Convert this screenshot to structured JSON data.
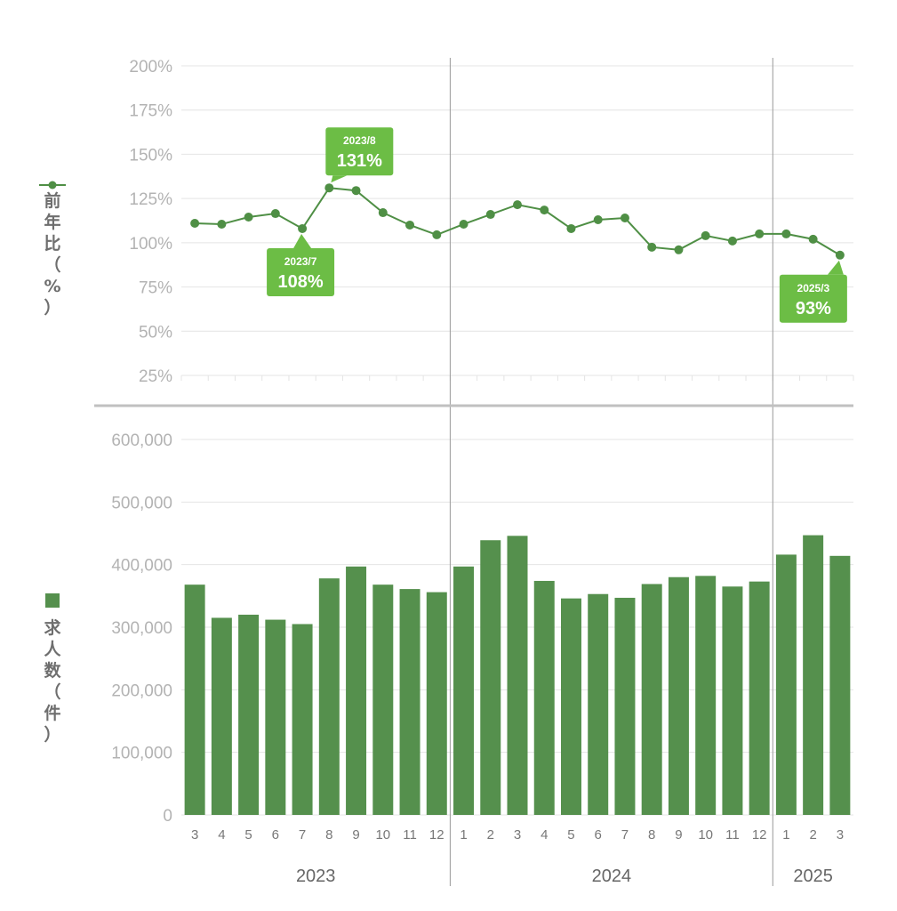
{
  "colors": {
    "bar": "#55904d",
    "line": "#4f8f45",
    "callout": "#6cbd45",
    "grid": "#e4e4e4",
    "divider": "#c0c0c0",
    "separator": "#9a9a9a"
  },
  "legend": {
    "line_label": "前年比（%）",
    "bar_label": "求人数（件）"
  },
  "chart_data": [
    {
      "type": "line",
      "ylabel": "前年比（%）",
      "ylim": [
        25,
        200
      ],
      "yticks": [
        "200%",
        "175%",
        "150%",
        "125%",
        "100%",
        "75%",
        "50%",
        "25%"
      ],
      "categories": [
        "2023/3",
        "2023/4",
        "2023/5",
        "2023/6",
        "2023/7",
        "2023/8",
        "2023/9",
        "2023/10",
        "2023/11",
        "2023/12",
        "2024/1",
        "2024/2",
        "2024/3",
        "2024/4",
        "2024/5",
        "2024/6",
        "2024/7",
        "2024/8",
        "2024/9",
        "2024/10",
        "2024/11",
        "2024/12",
        "2025/1",
        "2025/2",
        "2025/3"
      ],
      "series": [
        {
          "values": [
            111,
            110.5,
            114.5,
            116.5,
            108,
            131,
            129.5,
            117,
            110,
            104.5,
            110.5,
            116,
            121.5,
            118.5,
            108,
            113,
            114,
            97.5,
            96,
            104,
            101,
            105,
            105,
            102,
            93
          ]
        }
      ],
      "callouts": [
        {
          "index": 5,
          "date": "2023/8",
          "value": "131%",
          "position": "above"
        },
        {
          "index": 4,
          "date": "2023/7",
          "value": "108%",
          "position": "below"
        },
        {
          "index": 24,
          "date": "2025/3",
          "value": "93%",
          "position": "below"
        }
      ],
      "grid": true
    },
    {
      "type": "bar",
      "ylabel": "求人数（件）",
      "ylim": [
        0,
        600000
      ],
      "yticks": [
        "600,000",
        "500,000",
        "400,000",
        "300,000",
        "200,000",
        "100,000",
        "0"
      ],
      "categories": [
        "2023/3",
        "2023/4",
        "2023/5",
        "2023/6",
        "2023/7",
        "2023/8",
        "2023/9",
        "2023/10",
        "2023/11",
        "2023/12",
        "2024/1",
        "2024/2",
        "2024/3",
        "2024/4",
        "2024/5",
        "2024/6",
        "2024/7",
        "2024/8",
        "2024/9",
        "2024/10",
        "2024/11",
        "2024/12",
        "2025/1",
        "2025/2",
        "2025/3"
      ],
      "series": [
        {
          "values": [
            368000,
            315000,
            320000,
            312000,
            305000,
            378000,
            397000,
            368000,
            361000,
            356000,
            397000,
            439000,
            446000,
            374000,
            346000,
            353000,
            347000,
            369000,
            380000,
            382000,
            365000,
            373000,
            416000,
            447000,
            414000
          ]
        }
      ],
      "grid": true
    }
  ],
  "x_axis": {
    "months": [
      "3",
      "4",
      "5",
      "6",
      "7",
      "8",
      "9",
      "10",
      "11",
      "12",
      "1",
      "2",
      "3",
      "4",
      "5",
      "6",
      "7",
      "8",
      "9",
      "10",
      "11",
      "12",
      "1",
      "2",
      "3"
    ],
    "years": [
      {
        "label": "2023",
        "first": 0,
        "last": 9
      },
      {
        "label": "2024",
        "first": 10,
        "last": 21
      },
      {
        "label": "2025",
        "first": 22,
        "last": 24
      }
    ]
  }
}
